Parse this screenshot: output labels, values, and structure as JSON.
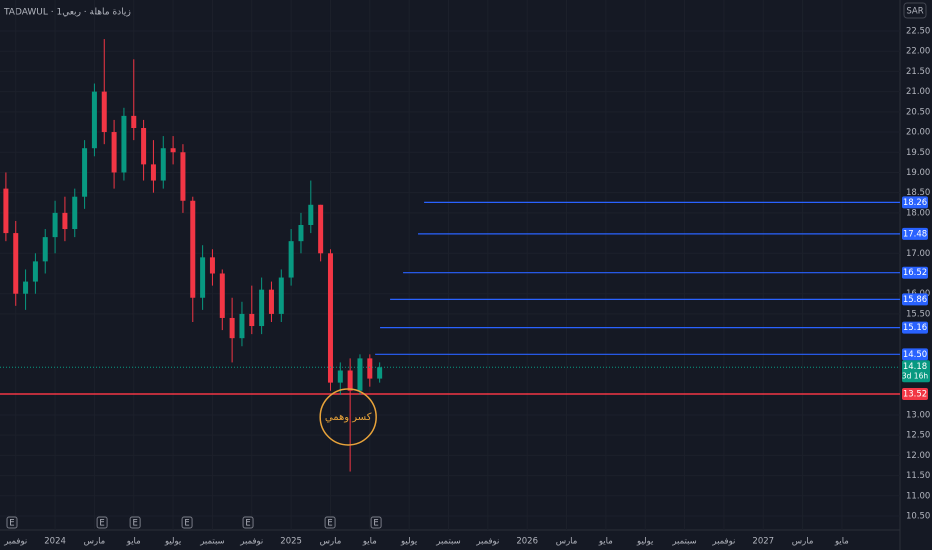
{
  "chart_data": {
    "type": "candlestick",
    "title": "TADAWUL · زيادة ماهلة · ربعي1",
    "currency": "SAR",
    "xlim": [
      -2.8,
      42.8
    ],
    "ylim": [
      10.5,
      22.5
    ],
    "xticks": [
      {
        "value": -2,
        "label": "نوفمبر"
      },
      {
        "value": 0,
        "label": "2024"
      },
      {
        "value": 2,
        "label": "مارس"
      },
      {
        "value": 4,
        "label": "مايو"
      },
      {
        "value": 6,
        "label": "يوليو"
      },
      {
        "value": 8,
        "label": "سبتمبر"
      },
      {
        "value": 10,
        "label": "نوفمبر"
      },
      {
        "value": 12,
        "label": "2025"
      },
      {
        "value": 14,
        "label": "مارس"
      },
      {
        "value": 16,
        "label": "مايو"
      },
      {
        "value": 18,
        "label": "يوليو"
      },
      {
        "value": 20,
        "label": "سبتمبر"
      },
      {
        "value": 22,
        "label": "نوفمبر"
      },
      {
        "value": 24,
        "label": "2026"
      },
      {
        "value": 26,
        "label": "مارس"
      },
      {
        "value": 28,
        "label": "مايو"
      },
      {
        "value": 30,
        "label": "يوليو"
      },
      {
        "value": 32,
        "label": "سبتمبر"
      },
      {
        "value": 34,
        "label": "نوفمبر"
      },
      {
        "value": 36,
        "label": "2027"
      },
      {
        "value": 38,
        "label": "مارس"
      },
      {
        "value": 40,
        "label": "مايو"
      }
    ],
    "yticks": [
      {
        "value": 22.5,
        "label": "22.50"
      },
      {
        "value": 22,
        "label": "22.00"
      },
      {
        "value": 21.5,
        "label": "21.50"
      },
      {
        "value": 21,
        "label": "21.00"
      },
      {
        "value": 20.5,
        "label": "20.50"
      },
      {
        "value": 20,
        "label": "20.00"
      },
      {
        "value": 19.5,
        "label": "19.50"
      },
      {
        "value": 19,
        "label": "19.00"
      },
      {
        "value": 18.5,
        "label": "18.50"
      },
      {
        "value": 18,
        "label": "18.00"
      },
      {
        "value": 17,
        "label": "17.00"
      },
      {
        "value": 16,
        "label": "16.00"
      },
      {
        "value": 15.5,
        "label": "15.50"
      },
      {
        "value": 13,
        "label": "13.00"
      },
      {
        "value": 12.5,
        "label": "12.50"
      },
      {
        "value": 12,
        "label": "12.00"
      },
      {
        "value": 11.5,
        "label": "11.50"
      },
      {
        "value": 11,
        "label": "11.00"
      },
      {
        "value": 10.5,
        "label": "10.50"
      }
    ],
    "grid": true,
    "up_color": "#089981",
    "down_color": "#f23645",
    "candles": {
      "x": [
        -2.5,
        -2,
        -1.5,
        -1,
        -0.5,
        0,
        0.5,
        1,
        1.5,
        2,
        2.5,
        3,
        3.5,
        4,
        4.5,
        5,
        5.5,
        6,
        6.5,
        7,
        7.5,
        8,
        8.5,
        9,
        9.5,
        10,
        10.5,
        11,
        11.5,
        12,
        12.5,
        13,
        13.5,
        14,
        14.5,
        15,
        15.5,
        16,
        16.5
      ],
      "open": [
        18.6,
        17.5,
        16.0,
        16.3,
        16.8,
        17.4,
        18.0,
        17.6,
        18.4,
        19.6,
        21.0,
        20.0,
        19.0,
        20.4,
        20.1,
        19.2,
        18.8,
        19.6,
        19.5,
        18.3,
        15.9,
        16.9,
        16.5,
        15.4,
        14.9,
        15.5,
        15.2,
        16.1,
        15.5,
        16.4,
        17.3,
        17.7,
        18.2,
        17.0,
        13.8,
        14.1,
        13.6,
        14.4,
        13.9
      ],
      "high": [
        19.0,
        17.8,
        16.6,
        17.0,
        17.6,
        18.3,
        18.4,
        18.6,
        19.8,
        21.2,
        22.3,
        20.3,
        20.6,
        21.8,
        20.3,
        19.8,
        19.9,
        19.9,
        19.7,
        18.4,
        17.2,
        17.1,
        16.6,
        15.9,
        15.8,
        16.2,
        16.4,
        16.3,
        16.6,
        17.6,
        18.0,
        18.8,
        18.2,
        17.1,
        14.3,
        14.4,
        14.5,
        14.5,
        14.3
      ],
      "low": [
        17.3,
        15.7,
        15.6,
        16.0,
        16.5,
        17.0,
        17.3,
        17.4,
        18.1,
        19.4,
        19.7,
        18.6,
        18.8,
        19.8,
        18.8,
        18.5,
        18.6,
        19.2,
        18.0,
        15.3,
        15.6,
        16.2,
        15.1,
        14.3,
        14.7,
        15.0,
        15.0,
        15.3,
        15.3,
        16.2,
        17.0,
        17.5,
        16.8,
        13.6,
        13.5,
        11.6,
        13.5,
        13.7,
        13.8
      ],
      "close": [
        17.5,
        16.0,
        16.3,
        16.8,
        17.4,
        18.0,
        17.6,
        18.4,
        19.6,
        21.0,
        20.0,
        19.0,
        20.4,
        20.1,
        19.2,
        18.8,
        19.6,
        19.5,
        18.3,
        15.9,
        16.9,
        16.5,
        15.4,
        14.9,
        15.5,
        15.2,
        16.1,
        15.5,
        16.4,
        17.3,
        17.7,
        18.2,
        17.0,
        13.8,
        14.1,
        13.6,
        14.4,
        13.9,
        14.18
      ]
    },
    "levels": {
      "color": "#2962ff",
      "x": [
        18.76,
        18.45,
        17.69,
        17.03,
        16.52,
        16.27
      ],
      "values": [
        18.26,
        17.48,
        16.52,
        15.86,
        15.16,
        14.5
      ],
      "value_labels": [
        "18.26",
        "17.48",
        "16.52",
        "15.86",
        "15.16",
        "14.50"
      ]
    },
    "support": {
      "value": 13.52,
      "color": "#f23645"
    },
    "countdown": "3d 16h",
    "earnings": {
      "label": "E",
      "x": [
        -2.19,
        2.39,
        4.07,
        6.71,
        9.81,
        13.98,
        16.32
      ]
    },
    "annotation": {
      "text": "كسر وهمي",
      "x": 14.9,
      "y": 12.95,
      "color": "#e8a33a"
    }
  }
}
